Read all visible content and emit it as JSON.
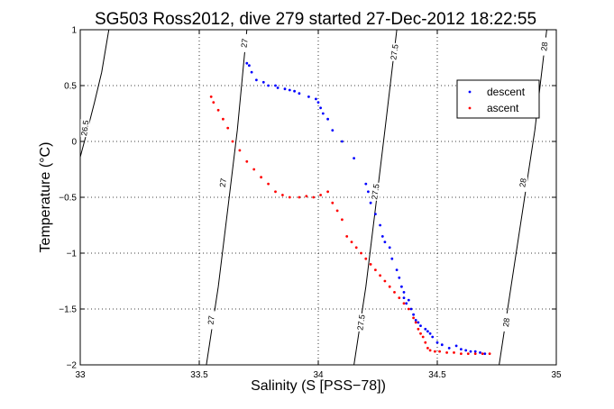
{
  "chart_data": {
    "type": "scatter",
    "title": "SG503 Ross2012, dive 279 started 27-Dec-2012 18:22:55",
    "xlabel": "Salinity (S [PSS−78])",
    "ylabel": "Temperature (°C)",
    "xlim": [
      33,
      35
    ],
    "ylim": [
      -2,
      1
    ],
    "xticks": [
      33,
      33.5,
      34,
      34.5,
      35
    ],
    "yticks": [
      -2,
      -1.5,
      -1,
      -0.5,
      0,
      0.5,
      1
    ],
    "xtick_labels": [
      "33",
      "33.5",
      "34",
      "34.5",
      "35"
    ],
    "ytick_labels": [
      "−2",
      "−1.5",
      "−1",
      "−0.5",
      "0",
      "0.5",
      "1"
    ],
    "grid": true,
    "legend_position": "top-right",
    "contours": [
      {
        "label": "26.5",
        "x": [
          33.0,
          33.03,
          33.06,
          33.09,
          33.12
        ],
        "y": [
          -0.14,
          0.1,
          0.35,
          0.62,
          1.0
        ]
      },
      {
        "label": "27",
        "x": [
          33.53,
          33.58,
          33.62,
          33.66,
          33.7
        ],
        "y": [
          -2.0,
          -1.3,
          -0.6,
          0.1,
          1.0
        ]
      },
      {
        "label": "27.5",
        "x": [
          34.15,
          34.2,
          34.24,
          34.28,
          34.33
        ],
        "y": [
          -2.0,
          -1.3,
          -0.6,
          0.1,
          1.0
        ]
      },
      {
        "label": "28",
        "x": [
          34.76,
          34.81,
          34.86,
          34.91,
          34.96
        ],
        "y": [
          -2.0,
          -1.3,
          -0.6,
          0.1,
          1.0
        ]
      }
    ],
    "contour_labels": [
      {
        "text": "26.5",
        "x": 33.02,
        "y": 0.12
      },
      {
        "text": "27",
        "x": 33.69,
        "y": 0.88
      },
      {
        "text": "27",
        "x": 33.6,
        "y": -0.37
      },
      {
        "text": "27",
        "x": 33.55,
        "y": -1.6
      },
      {
        "text": "27.5",
        "x": 34.32,
        "y": 0.8
      },
      {
        "text": "27.5",
        "x": 34.24,
        "y": -0.45
      },
      {
        "text": "27.5",
        "x": 34.18,
        "y": -1.62
      },
      {
        "text": "28",
        "x": 34.95,
        "y": 0.85
      },
      {
        "text": "28",
        "x": 34.86,
        "y": -0.37
      },
      {
        "text": "28",
        "x": 34.79,
        "y": -1.62
      }
    ],
    "series": [
      {
        "name": "descent",
        "color": "#0000ff",
        "x": [
          33.7,
          33.71,
          33.72,
          33.74,
          33.77,
          33.79,
          33.82,
          33.83,
          33.86,
          33.88,
          33.9,
          33.92,
          33.96,
          33.99,
          34.0,
          34.01,
          34.02,
          34.04,
          34.06,
          34.1,
          34.15,
          34.2,
          34.21,
          34.22,
          34.24,
          34.26,
          34.27,
          34.28,
          34.3,
          34.31,
          34.33,
          34.34,
          34.35,
          34.36,
          34.36,
          34.37,
          34.38,
          34.39,
          34.4,
          34.41,
          34.42,
          34.43,
          34.45,
          34.46,
          34.47,
          34.48,
          34.5,
          34.52,
          34.55,
          34.58,
          34.6,
          34.62,
          34.64,
          34.66,
          34.68,
          34.7
        ],
        "y": [
          0.7,
          0.68,
          0.62,
          0.55,
          0.53,
          0.5,
          0.5,
          0.48,
          0.47,
          0.46,
          0.45,
          0.43,
          0.4,
          0.38,
          0.35,
          0.3,
          0.25,
          0.2,
          0.1,
          0.0,
          -0.15,
          -0.38,
          -0.45,
          -0.55,
          -0.65,
          -0.75,
          -0.85,
          -0.9,
          -0.95,
          -1.05,
          -1.15,
          -1.22,
          -1.3,
          -1.35,
          -1.4,
          -1.45,
          -1.42,
          -1.5,
          -1.55,
          -1.6,
          -1.62,
          -1.65,
          -1.68,
          -1.7,
          -1.72,
          -1.75,
          -1.8,
          -1.82,
          -1.85,
          -1.83,
          -1.86,
          -1.87,
          -1.88,
          -1.88,
          -1.89,
          -1.9
        ],
        "legend_label": "descent"
      },
      {
        "name": "ascent",
        "color": "#ff0000",
        "x": [
          33.55,
          33.56,
          33.58,
          33.6,
          33.62,
          33.64,
          33.67,
          33.7,
          33.73,
          33.76,
          33.79,
          33.82,
          33.85,
          33.88,
          33.92,
          33.95,
          33.98,
          34.01,
          34.04,
          34.06,
          34.08,
          34.1,
          34.12,
          34.14,
          34.16,
          34.18,
          34.2,
          34.22,
          34.24,
          34.26,
          34.28,
          34.3,
          34.32,
          34.34,
          34.36,
          34.38,
          34.4,
          34.41,
          34.42,
          34.43,
          34.44,
          34.45,
          34.46,
          34.47,
          34.49,
          34.51,
          34.54,
          34.57,
          34.6,
          34.63,
          34.66,
          34.69,
          34.72
        ],
        "y": [
          0.4,
          0.35,
          0.28,
          0.2,
          0.12,
          0.0,
          -0.08,
          -0.18,
          -0.25,
          -0.32,
          -0.38,
          -0.45,
          -0.48,
          -0.5,
          -0.5,
          -0.49,
          -0.5,
          -0.48,
          -0.45,
          -0.55,
          -0.62,
          -0.7,
          -0.85,
          -0.9,
          -0.95,
          -1.0,
          -1.05,
          -1.1,
          -1.15,
          -1.2,
          -1.25,
          -1.3,
          -1.35,
          -1.4,
          -1.45,
          -1.5,
          -1.58,
          -1.62,
          -1.68,
          -1.72,
          -1.75,
          -1.8,
          -1.85,
          -1.87,
          -1.88,
          -1.88,
          -1.89,
          -1.89,
          -1.9,
          -1.9,
          -1.9,
          -1.9,
          -1.9
        ],
        "legend_label": "ascent"
      }
    ]
  }
}
